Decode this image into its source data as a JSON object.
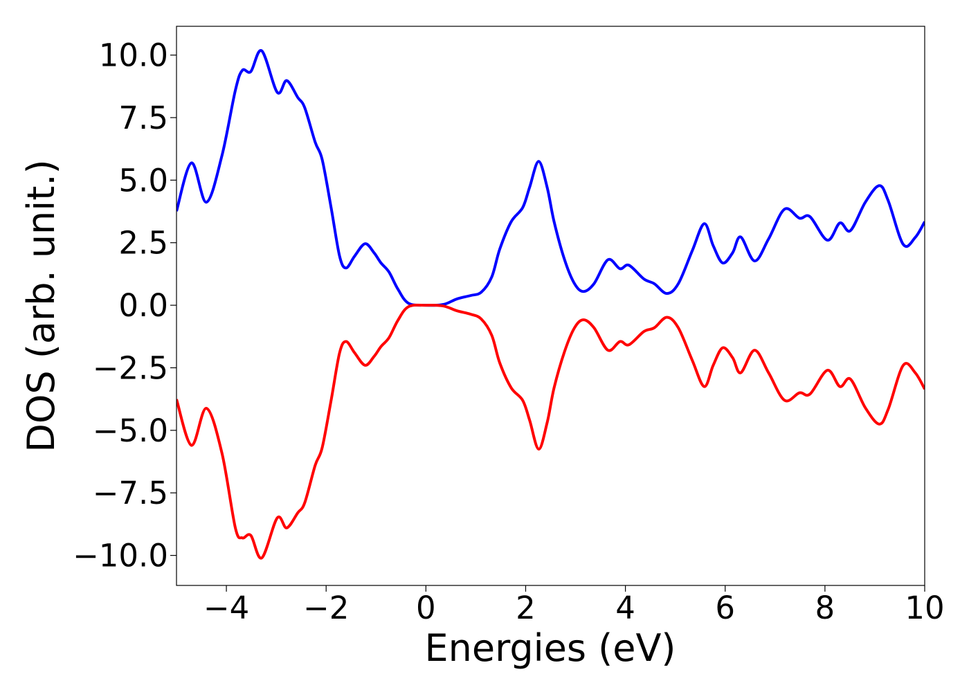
{
  "chart_data": {
    "type": "line",
    "xlabel": "Energies (eV)",
    "ylabel": "DOS (arb. unit.)",
    "xlim": [
      -5,
      10
    ],
    "ylim": [
      -11.2,
      11.15
    ],
    "xticks": [
      {
        "value": -4,
        "label": "−4"
      },
      {
        "value": -2,
        "label": "−2"
      },
      0,
      2,
      4,
      6,
      8,
      10
    ],
    "yticks": [
      {
        "value": -10,
        "label": "−10.0"
      },
      {
        "value": -7.5,
        "label": "−7.5"
      },
      {
        "value": -5,
        "label": "−5.0"
      },
      {
        "value": -2.5,
        "label": "−2.5"
      },
      {
        "value": 0,
        "label": "0.0"
      },
      {
        "value": 2.5,
        "label": "2.5"
      },
      {
        "value": 5,
        "label": "5.0"
      },
      {
        "value": 7.5,
        "label": "7.5"
      },
      {
        "value": 10,
        "label": "10.0"
      }
    ],
    "x": [
      -5.0,
      -4.7,
      -4.4,
      -4.09,
      -3.82,
      -3.68,
      -3.51,
      -3.29,
      -2.98,
      -2.79,
      -2.57,
      -2.43,
      -2.22,
      -2.08,
      -1.9,
      -1.73,
      -1.6,
      -1.43,
      -1.22,
      -1.04,
      -0.9,
      -0.74,
      -0.56,
      -0.35,
      0.0,
      0.35,
      0.62,
      0.9,
      1.11,
      1.32,
      1.48,
      1.71,
      1.94,
      2.08,
      2.26,
      2.43,
      2.57,
      2.78,
      2.98,
      3.16,
      3.37,
      3.65,
      3.89,
      4.07,
      4.37,
      4.58,
      4.83,
      5.06,
      5.34,
      5.58,
      5.76,
      5.95,
      6.15,
      6.31,
      6.59,
      6.87,
      7.19,
      7.49,
      7.7,
      8.05,
      8.3,
      8.51,
      8.81,
      9.09,
      9.27,
      9.57,
      9.81,
      10.0
    ],
    "series": [
      {
        "color": "#0000ff",
        "values": [
          3.76,
          5.69,
          4.12,
          5.97,
          8.59,
          9.39,
          9.34,
          10.17,
          8.51,
          8.98,
          8.31,
          7.9,
          6.52,
          5.83,
          3.9,
          1.96,
          1.49,
          1.96,
          2.46,
          2.1,
          1.69,
          1.33,
          0.64,
          0.08,
          0.0,
          0.03,
          0.25,
          0.39,
          0.52,
          1.13,
          2.24,
          3.34,
          3.9,
          4.72,
          5.75,
          4.72,
          3.34,
          1.82,
          0.86,
          0.55,
          0.86,
          1.82,
          1.46,
          1.6,
          1.05,
          0.86,
          0.47,
          0.86,
          2.18,
          3.26,
          2.38,
          1.69,
          2.1,
          2.73,
          1.77,
          2.65,
          3.84,
          3.48,
          3.54,
          2.6,
          3.29,
          2.98,
          4.12,
          4.78,
          4.17,
          2.43,
          2.71,
          3.34
        ]
      },
      {
        "color": "#ff0000",
        "values": [
          -3.76,
          -5.6,
          -4.12,
          -5.9,
          -8.9,
          -9.3,
          -9.2,
          -10.1,
          -8.5,
          -8.9,
          -8.3,
          -7.9,
          -6.4,
          -5.7,
          -3.8,
          -1.9,
          -1.45,
          -1.9,
          -2.4,
          -2.05,
          -1.65,
          -1.3,
          -0.6,
          -0.06,
          0.0,
          -0.03,
          -0.22,
          -0.36,
          -0.55,
          -1.2,
          -2.3,
          -3.3,
          -3.8,
          -4.6,
          -5.75,
          -4.7,
          -3.3,
          -1.85,
          -0.9,
          -0.58,
          -0.9,
          -1.8,
          -1.45,
          -1.58,
          -1.05,
          -0.9,
          -0.48,
          -0.9,
          -2.2,
          -3.25,
          -2.4,
          -1.7,
          -2.1,
          -2.7,
          -1.8,
          -2.7,
          -3.8,
          -3.5,
          -3.55,
          -2.6,
          -3.25,
          -2.95,
          -4.1,
          -4.75,
          -4.15,
          -2.4,
          -2.7,
          -3.35
        ]
      }
    ]
  }
}
